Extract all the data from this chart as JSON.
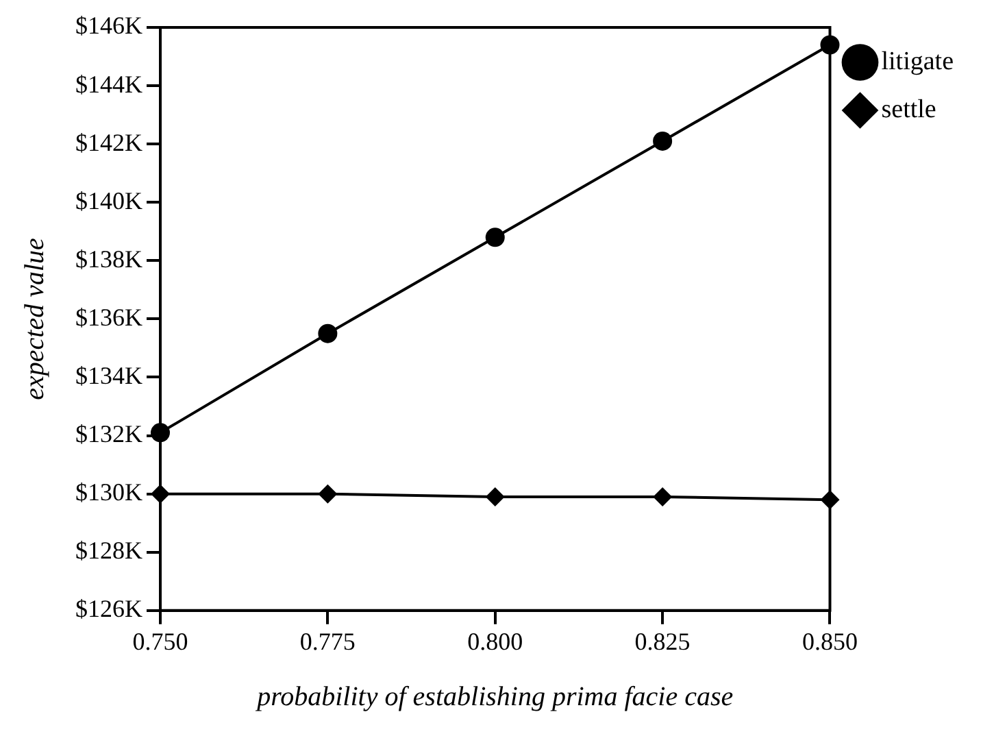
{
  "chart_data": {
    "type": "line",
    "xlabel": "probability of establishing prima facie case",
    "ylabel": "expected value",
    "x": [
      0.75,
      0.775,
      0.8,
      0.825,
      0.85
    ],
    "series": [
      {
        "name": "litigate",
        "color": "#000000",
        "marker": "circle",
        "values": [
          132.1,
          135.5,
          138.8,
          142.1,
          145.4
        ]
      },
      {
        "name": "settle",
        "color": "#000000",
        "marker": "diamond",
        "values": [
          130,
          130,
          129.9,
          129.9,
          129.8
        ]
      }
    ],
    "xlim": [
      0.75,
      0.85
    ],
    "xticks": [
      {
        "value": 0.75,
        "label": "0.750"
      },
      {
        "value": 0.775,
        "label": "0.775"
      },
      {
        "value": 0.8,
        "label": "0.800"
      },
      {
        "value": 0.825,
        "label": "0.825"
      },
      {
        "value": 0.85,
        "label": "0.850"
      }
    ],
    "ylim": [
      126,
      146
    ],
    "yticks": [
      {
        "value": 126,
        "label": "$126K"
      },
      {
        "value": 128,
        "label": "$128K"
      },
      {
        "value": 130,
        "label": "$130K"
      },
      {
        "value": 132,
        "label": "$132K"
      },
      {
        "value": 134,
        "label": "$134K"
      },
      {
        "value": 136,
        "label": "$136K"
      },
      {
        "value": 138,
        "label": "$138K"
      },
      {
        "value": 140,
        "label": "$140K"
      },
      {
        "value": 142,
        "label": "$142K"
      },
      {
        "value": 144,
        "label": "$144K"
      },
      {
        "value": 146,
        "label": "$146K"
      }
    ],
    "grid": false,
    "legend": "top right",
    "line_style": "solid"
  }
}
